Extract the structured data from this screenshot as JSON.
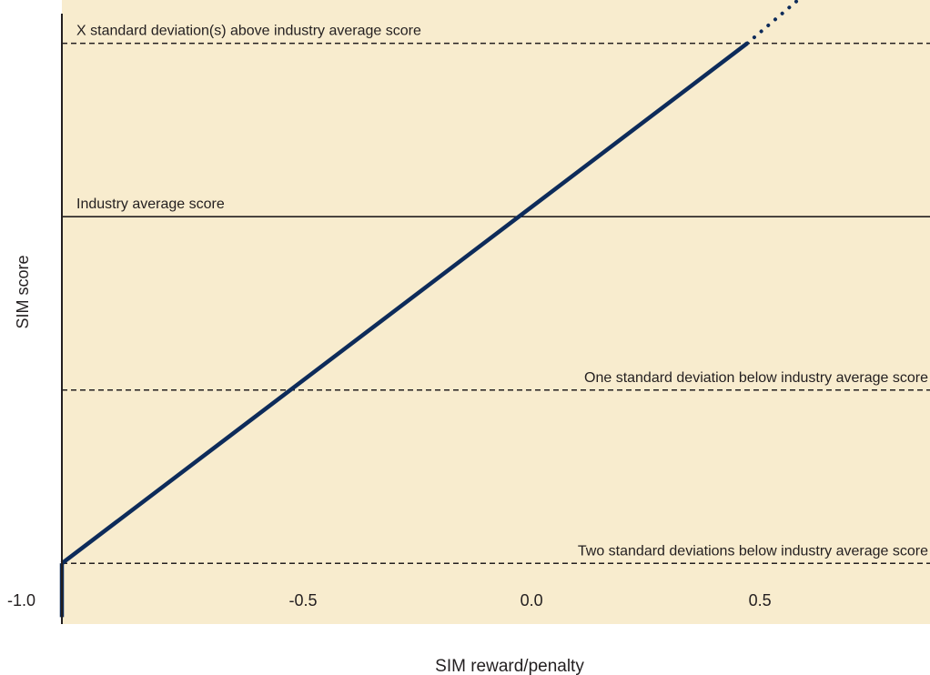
{
  "chart_data": {
    "type": "line",
    "xlabel": "SIM reward/penalty",
    "ylabel": "SIM score",
    "x_ticks": [
      "-1.0",
      "-0.5",
      "0.0",
      "0.5"
    ],
    "x_tick_values": [
      -1.0,
      -0.5,
      0.0,
      0.5
    ],
    "xlim": [
      -1.0,
      0.9
    ],
    "ylim": [
      -2.35,
      1.25
    ],
    "reference_lines": [
      {
        "label": "X standard deviation(s) above industry average score",
        "y": 1,
        "style": "dashed"
      },
      {
        "label": "Industry average score",
        "y": 0,
        "style": "solid"
      },
      {
        "label": "One standard deviation below industry average score",
        "y": -1,
        "style": "dashed"
      },
      {
        "label": "Two standard deviations below industry average score",
        "y": -2,
        "style": "dashed"
      }
    ],
    "series": [
      {
        "style": "solid",
        "points": [
          [
            -1.0,
            -2.0
          ],
          [
            0.0,
            0.0
          ],
          [
            0.5,
            1.0
          ]
        ]
      },
      {
        "style": "dotted",
        "points": [
          [
            0.5,
            1.0
          ],
          [
            0.62,
            1.27
          ]
        ]
      },
      {
        "style": "solid",
        "points": [
          [
            -1.0,
            -2.0
          ],
          [
            -1.0,
            -2.31
          ]
        ]
      }
    ],
    "grid": false,
    "colors": {
      "plot_background": "#f8ecce",
      "series_line": "#0d2b5a",
      "reference_line": "#231f20",
      "axis": "#231f20"
    }
  }
}
